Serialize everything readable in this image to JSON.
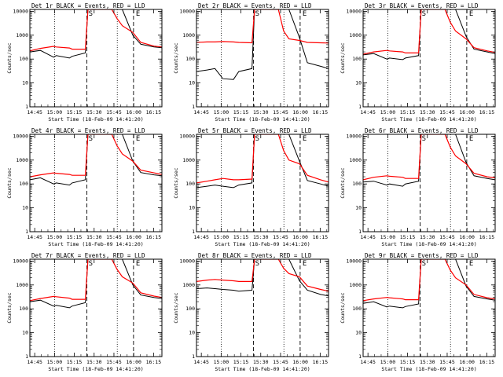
{
  "figure": {
    "panels_title_prefix": "",
    "xlabel": "Start Time (18-Feb-09 14:41:20)",
    "ylabel": "Counts/sec",
    "xticks": [
      "14:45",
      "15:00",
      "15:15",
      "15:30",
      "15:45",
      "16:00",
      "16:15"
    ],
    "yticks": [
      "1",
      "10",
      "100",
      "1000",
      "10000"
    ],
    "marker_S": "S",
    "marker_E": "E"
  },
  "chart_data": [
    {
      "type": "line",
      "title": "Det 1r BLACK = Events, RED = LLD",
      "xlabel": "Start Time (18-Feb-09 14:41:20)",
      "ylabel": "Counts/sec",
      "yscale": "log",
      "ylim": [
        1,
        12000
      ],
      "xlim_minutes": [
        0,
        100
      ],
      "x": [
        0,
        8,
        18,
        20,
        30,
        32,
        42,
        44,
        46,
        54,
        62,
        66,
        70,
        78,
        84,
        94,
        100
      ],
      "series": [
        {
          "name": "BLACK = Events",
          "color": "#000000",
          "values": [
            200,
            230,
            120,
            140,
            110,
            130,
            180,
            14000,
            14000,
            14000,
            14000,
            14000,
            12000,
            1000,
            420,
            320,
            300
          ]
        },
        {
          "name": "RED = LLD",
          "color": "#ff0000",
          "values": [
            220,
            280,
            340,
            320,
            290,
            260,
            260,
            14000,
            14000,
            14000,
            13000,
            5000,
            2500,
            1300,
            500,
            350,
            320
          ]
        }
      ],
      "vlines_dotted_minutes": [
        18.7,
        66.2
      ],
      "vlines_dashed_minutes": [
        43.2,
        78.5
      ]
    },
    {
      "type": "line",
      "title": "Det 2r BLACK = Events, RED = LLD",
      "xlabel": "Start Time (18-Feb-09 14:41:20)",
      "ylabel": "Counts/sec",
      "yscale": "log",
      "ylim": [
        1,
        12000
      ],
      "xlim_minutes": [
        0,
        100
      ],
      "x": [
        0,
        8,
        14,
        20,
        28,
        32,
        42,
        44,
        46,
        54,
        62,
        66,
        70,
        78,
        84,
        94,
        100
      ],
      "series": [
        {
          "name": "BLACK = Events",
          "color": "#000000",
          "values": [
            30,
            35,
            40,
            15,
            14,
            30,
            40,
            14000,
            14000,
            14000,
            14000,
            14000,
            12000,
            800,
            70,
            50,
            40
          ]
        },
        {
          "name": "RED = LLD",
          "color": "#ff0000",
          "values": [
            500,
            520,
            520,
            540,
            520,
            500,
            480,
            14000,
            14000,
            14000,
            13000,
            1500,
            700,
            600,
            500,
            480,
            470
          ]
        }
      ],
      "vlines_dotted_minutes": [
        18.7,
        66.2
      ],
      "vlines_dashed_minutes": [
        43.2,
        78.5
      ]
    },
    {
      "type": "line",
      "title": "Det 3r BLACK = Events, RED = LLD",
      "xlabel": "Start Time (18-Feb-09 14:41:20)",
      "ylabel": "Counts/sec",
      "yscale": "log",
      "ylim": [
        1,
        12000
      ],
      "xlim_minutes": [
        0,
        100
      ],
      "x": [
        0,
        8,
        18,
        20,
        30,
        32,
        42,
        44,
        46,
        54,
        62,
        66,
        70,
        78,
        84,
        94,
        100
      ],
      "series": [
        {
          "name": "BLACK = Events",
          "color": "#000000",
          "values": [
            150,
            170,
            100,
            110,
            95,
            110,
            140,
            14000,
            14000,
            14000,
            14000,
            14000,
            12000,
            900,
            260,
            200,
            170
          ]
        },
        {
          "name": "RED = LLD",
          "color": "#ff0000",
          "values": [
            160,
            200,
            230,
            220,
            200,
            180,
            180,
            14000,
            14000,
            14000,
            13000,
            3500,
            1500,
            700,
            300,
            220,
            190
          ]
        }
      ],
      "vlines_dotted_minutes": [
        18.7,
        66.2
      ],
      "vlines_dashed_minutes": [
        43.2,
        78.5
      ]
    },
    {
      "type": "line",
      "title": "Det 4r BLACK = Events, RED = LLD",
      "xlabel": "Start Time (18-Feb-09 14:41:20)",
      "ylabel": "Counts/sec",
      "yscale": "log",
      "ylim": [
        1,
        12000
      ],
      "xlim_minutes": [
        0,
        100
      ],
      "x": [
        0,
        8,
        18,
        20,
        30,
        32,
        42,
        44,
        46,
        54,
        62,
        66,
        70,
        78,
        84,
        94,
        100
      ],
      "series": [
        {
          "name": "BLACK = Events",
          "color": "#000000",
          "values": [
            150,
            180,
            100,
            110,
            90,
            110,
            150,
            14000,
            14000,
            14000,
            14000,
            14000,
            12000,
            900,
            300,
            240,
            220
          ]
        },
        {
          "name": "RED = LLD",
          "color": "#ff0000",
          "values": [
            200,
            240,
            290,
            280,
            250,
            230,
            230,
            14000,
            14000,
            14000,
            13000,
            4000,
            1800,
            900,
            380,
            290,
            250
          ]
        }
      ],
      "vlines_dotted_minutes": [
        18.7,
        66.2
      ],
      "vlines_dashed_minutes": [
        43.2,
        78.5
      ]
    },
    {
      "type": "line",
      "title": "Det 5r BLACK = Events, RED = LLD",
      "xlabel": "Start Time (18-Feb-09 14:41:20)",
      "ylabel": "Counts/sec",
      "yscale": "log",
      "ylim": [
        1,
        12000
      ],
      "xlim_minutes": [
        0,
        100
      ],
      "x": [
        0,
        8,
        14,
        20,
        28,
        32,
        42,
        44,
        46,
        54,
        62,
        66,
        70,
        78,
        84,
        94,
        100
      ],
      "series": [
        {
          "name": "BLACK = Events",
          "color": "#000000",
          "values": [
            70,
            80,
            90,
            80,
            70,
            90,
            110,
            14000,
            14000,
            14000,
            14000,
            14000,
            12000,
            900,
            140,
            100,
            80
          ]
        },
        {
          "name": "RED = LLD",
          "color": "#ff0000",
          "values": [
            110,
            130,
            150,
            170,
            150,
            150,
            160,
            14000,
            14000,
            14000,
            13000,
            2500,
            1000,
            700,
            230,
            150,
            120
          ]
        }
      ],
      "vlines_dotted_minutes": [
        18.7,
        66.2
      ],
      "vlines_dashed_minutes": [
        43.2,
        78.5
      ]
    },
    {
      "type": "line",
      "title": "Det 6r BLACK = Events, RED = LLD",
      "xlabel": "Start Time (18-Feb-09 14:41:20)",
      "ylabel": "Counts/sec",
      "yscale": "log",
      "ylim": [
        1,
        12000
      ],
      "xlim_minutes": [
        0,
        100
      ],
      "x": [
        0,
        8,
        18,
        20,
        30,
        32,
        42,
        44,
        46,
        54,
        62,
        66,
        70,
        78,
        84,
        94,
        100
      ],
      "series": [
        {
          "name": "BLACK = Events",
          "color": "#000000",
          "values": [
            120,
            130,
            90,
            100,
            80,
            100,
            130,
            14000,
            14000,
            14000,
            14000,
            14000,
            12000,
            800,
            220,
            170,
            150
          ]
        },
        {
          "name": "RED = LLD",
          "color": "#ff0000",
          "values": [
            150,
            190,
            220,
            210,
            190,
            170,
            170,
            14000,
            14000,
            14000,
            13000,
            3500,
            1500,
            700,
            280,
            200,
            180
          ]
        }
      ],
      "vlines_dotted_minutes": [
        18.7,
        66.2
      ],
      "vlines_dashed_minutes": [
        43.2,
        78.5
      ]
    },
    {
      "type": "line",
      "title": "Det 7r BLACK = Events, RED = LLD",
      "xlabel": "Start Time (18-Feb-09 14:41:20)",
      "ylabel": "Counts/sec",
      "yscale": "log",
      "ylim": [
        1,
        12000
      ],
      "xlim_minutes": [
        0,
        100
      ],
      "x": [
        0,
        8,
        18,
        20,
        30,
        32,
        42,
        44,
        46,
        54,
        62,
        66,
        70,
        78,
        84,
        94,
        100
      ],
      "series": [
        {
          "name": "BLACK = Events",
          "color": "#000000",
          "values": [
            200,
            230,
            130,
            140,
            110,
            130,
            180,
            14000,
            14000,
            14000,
            14000,
            14000,
            12000,
            1000,
            380,
            300,
            270
          ]
        },
        {
          "name": "RED = LLD",
          "color": "#ff0000",
          "values": [
            220,
            270,
            330,
            320,
            280,
            250,
            250,
            14000,
            14000,
            14000,
            13000,
            4500,
            2200,
            1200,
            470,
            340,
            300
          ]
        }
      ],
      "vlines_dotted_minutes": [
        18.7,
        66.2
      ],
      "vlines_dashed_minutes": [
        43.2,
        78.5
      ]
    },
    {
      "type": "line",
      "title": "Det 8r BLACK = Events, RED = LLD",
      "xlabel": "Start Time (18-Feb-09 14:41:20)",
      "ylabel": "Counts/sec",
      "yscale": "log",
      "ylim": [
        1,
        12000
      ],
      "xlim_minutes": [
        0,
        100
      ],
      "x": [
        0,
        8,
        14,
        20,
        28,
        32,
        42,
        44,
        46,
        54,
        62,
        66,
        70,
        78,
        84,
        94,
        100
      ],
      "series": [
        {
          "name": "BLACK = Events",
          "color": "#000000",
          "values": [
            700,
            750,
            700,
            650,
            600,
            550,
            600,
            14000,
            14000,
            14000,
            14000,
            14000,
            12000,
            1500,
            600,
            400,
            350
          ]
        },
        {
          "name": "RED = LLD",
          "color": "#ff0000",
          "values": [
            1400,
            1600,
            1700,
            1600,
            1500,
            1400,
            1400,
            14000,
            14000,
            14000,
            13000,
            5000,
            3000,
            2200,
            900,
            650,
            550
          ]
        }
      ],
      "vlines_dotted_minutes": [
        18.7,
        66.2
      ],
      "vlines_dashed_minutes": [
        43.2,
        78.5
      ]
    },
    {
      "type": "line",
      "title": "Det 9r BLACK = Events, RED = LLD",
      "xlabel": "Start Time (18-Feb-09 14:41:20)",
      "ylabel": "Counts/sec",
      "yscale": "log",
      "ylim": [
        1,
        12000
      ],
      "xlim_minutes": [
        0,
        100
      ],
      "x": [
        0,
        8,
        18,
        20,
        30,
        32,
        42,
        44,
        46,
        54,
        62,
        66,
        70,
        78,
        84,
        94,
        100
      ],
      "series": [
        {
          "name": "BLACK = Events",
          "color": "#000000",
          "values": [
            170,
            200,
            120,
            130,
            110,
            125,
            160,
            14000,
            14000,
            14000,
            14000,
            14000,
            12000,
            900,
            330,
            260,
            230
          ]
        },
        {
          "name": "RED = LLD",
          "color": "#ff0000",
          "values": [
            220,
            260,
            300,
            290,
            260,
            240,
            240,
            14000,
            14000,
            14000,
            13000,
            4200,
            2000,
            1000,
            400,
            290,
            260
          ]
        }
      ],
      "vlines_dotted_minutes": [
        18.7,
        66.2
      ],
      "vlines_dashed_minutes": [
        43.2,
        78.5
      ]
    }
  ]
}
